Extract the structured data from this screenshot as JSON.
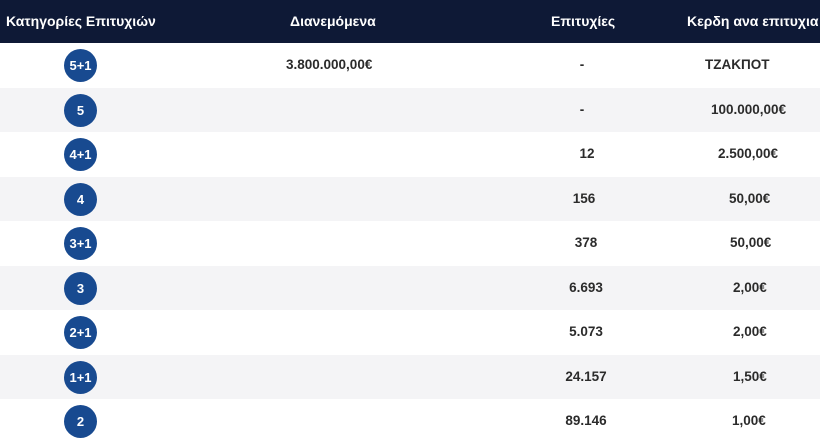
{
  "header": {
    "category": "Κατηγορίες Επιτυχιών",
    "distributed": "Διανεμόμενα",
    "winners": "Επιτυχίες",
    "prize": "Κερδη ανα επιτυχια"
  },
  "rows": [
    {
      "category": "5+1",
      "distributed": "3.800.000,00€",
      "winners": "-",
      "prize": "ΤΖΑΚΠΟΤ"
    },
    {
      "category": "5",
      "distributed": "",
      "winners": "-",
      "prize": "100.000,00€"
    },
    {
      "category": "4+1",
      "distributed": "",
      "winners": "12",
      "prize": "2.500,00€"
    },
    {
      "category": "4",
      "distributed": "",
      "winners": "156",
      "prize": "50,00€"
    },
    {
      "category": "3+1",
      "distributed": "",
      "winners": "378",
      "prize": "50,00€"
    },
    {
      "category": "3",
      "distributed": "",
      "winners": "6.693",
      "prize": "2,00€"
    },
    {
      "category": "2+1",
      "distributed": "",
      "winners": "5.073",
      "prize": "2,00€"
    },
    {
      "category": "1+1",
      "distributed": "",
      "winners": "24.157",
      "prize": "1,50€"
    },
    {
      "category": "2",
      "distributed": "",
      "winners": "89.146",
      "prize": "1,00€"
    }
  ]
}
